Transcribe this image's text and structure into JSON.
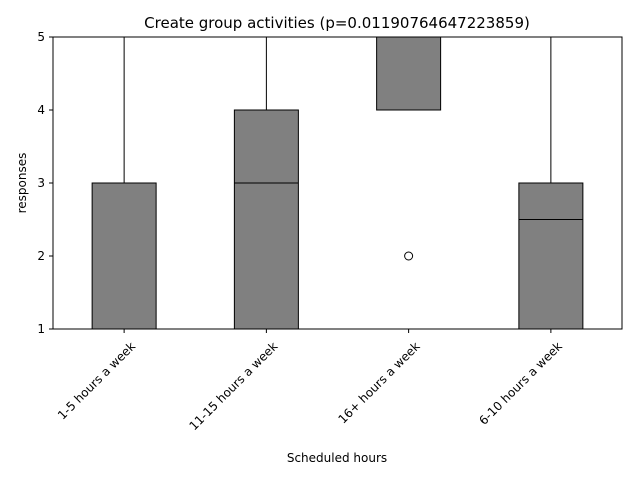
{
  "chart_data": {
    "type": "box",
    "title": "Create group activities (p=0.01190764647223859)",
    "xlabel": "Scheduled hours",
    "ylabel": "responses",
    "ylim": [
      1,
      5
    ],
    "yticks": [
      1,
      2,
      3,
      4,
      5
    ],
    "categories": [
      "1-5 hours a week",
      "11-15 hours a week",
      "16+ hours a week",
      "6-10 hours a week"
    ],
    "boxes": [
      {
        "category": "1-5 hours a week",
        "whisker_low": 1,
        "q1": 1,
        "median": 1,
        "q3": 3,
        "whisker_high": 5,
        "outliers": []
      },
      {
        "category": "11-15 hours a week",
        "whisker_low": 1,
        "q1": 1,
        "median": 3,
        "q3": 4,
        "whisker_high": 5,
        "outliers": []
      },
      {
        "category": "16+ hours a week",
        "whisker_low": 4,
        "q1": 4,
        "median": 4,
        "q3": 5,
        "whisker_high": 5,
        "outliers": [
          2
        ]
      },
      {
        "category": "6-10 hours a week",
        "whisker_low": 1,
        "q1": 1,
        "median": 2.5,
        "q3": 3,
        "whisker_high": 5,
        "outliers": []
      }
    ],
    "box_color": "#808080",
    "edge_color": "#000000",
    "grid": false,
    "xtick_rotation": 45
  }
}
